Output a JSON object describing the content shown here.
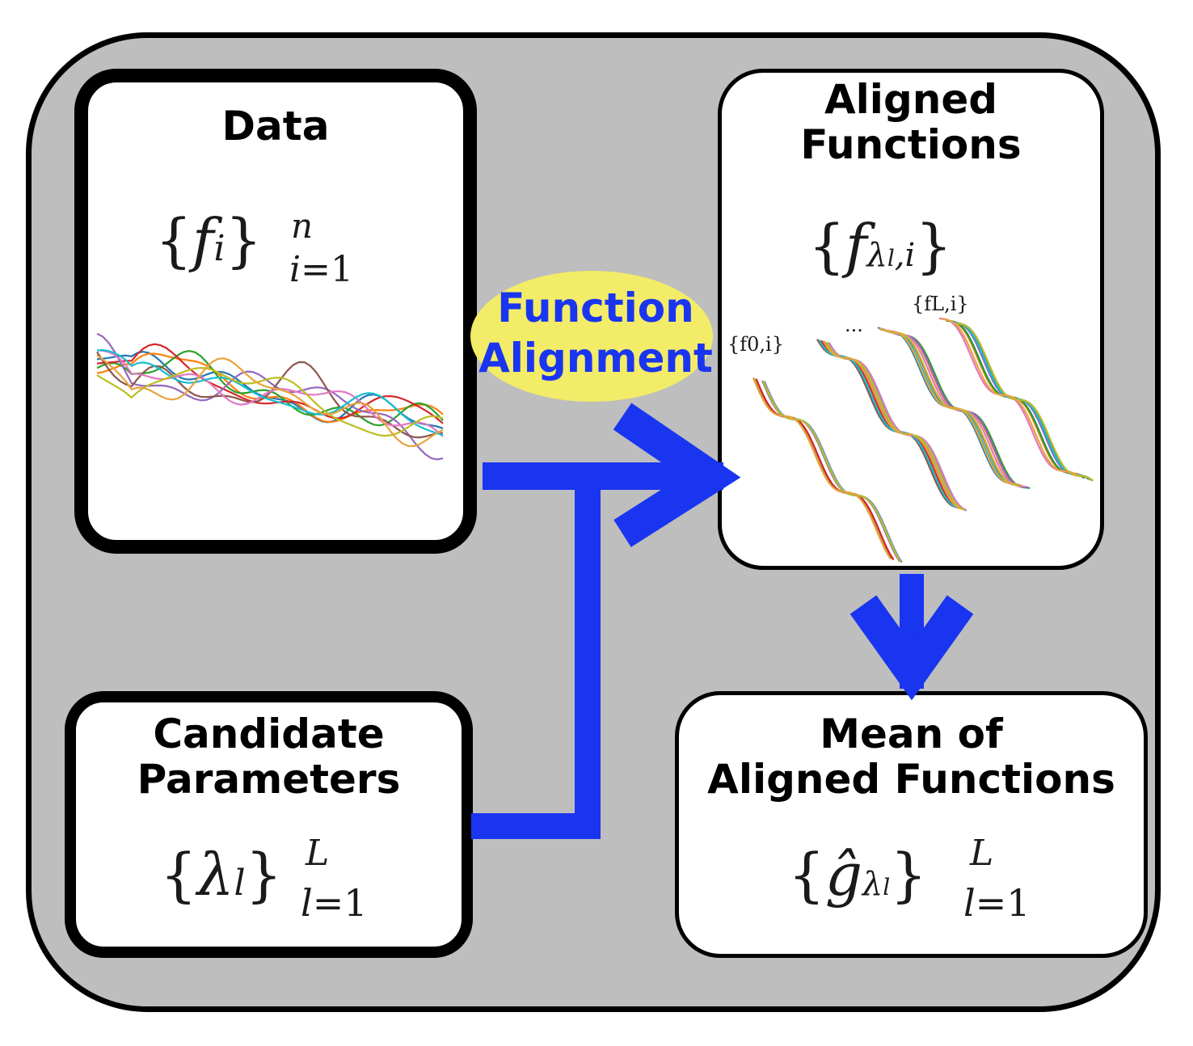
{
  "boxes": {
    "data": {
      "title": "Data",
      "math": "{fi}n i=1"
    },
    "candidate": {
      "title_line1": "Candidate",
      "title_line2": "Parameters",
      "math": "{λl}L l=1"
    },
    "aligned": {
      "title_line1": "Aligned",
      "title_line2": "Functions",
      "math": "{fλl,i}"
    },
    "mean": {
      "title_line1": "Mean  of",
      "title_line2": "Aligned Functions",
      "math": "{ĝλl}L l=1"
    }
  },
  "process": {
    "label_line1": "Function",
    "label_line2": "Alignment"
  },
  "aligned_labels": {
    "first": "{f0,i}",
    "dots": "...",
    "last": "{fL,i}"
  },
  "colors": {
    "arrow": "#1a35f0",
    "highlight": "#f2ec68",
    "panel": "#bebebe",
    "curves": [
      "#1f77b4",
      "#ff7f0e",
      "#2ca02c",
      "#d62728",
      "#9467bd",
      "#8c564b",
      "#e377c2",
      "#17becf",
      "#bcbd22",
      "#e8a33c"
    ]
  }
}
